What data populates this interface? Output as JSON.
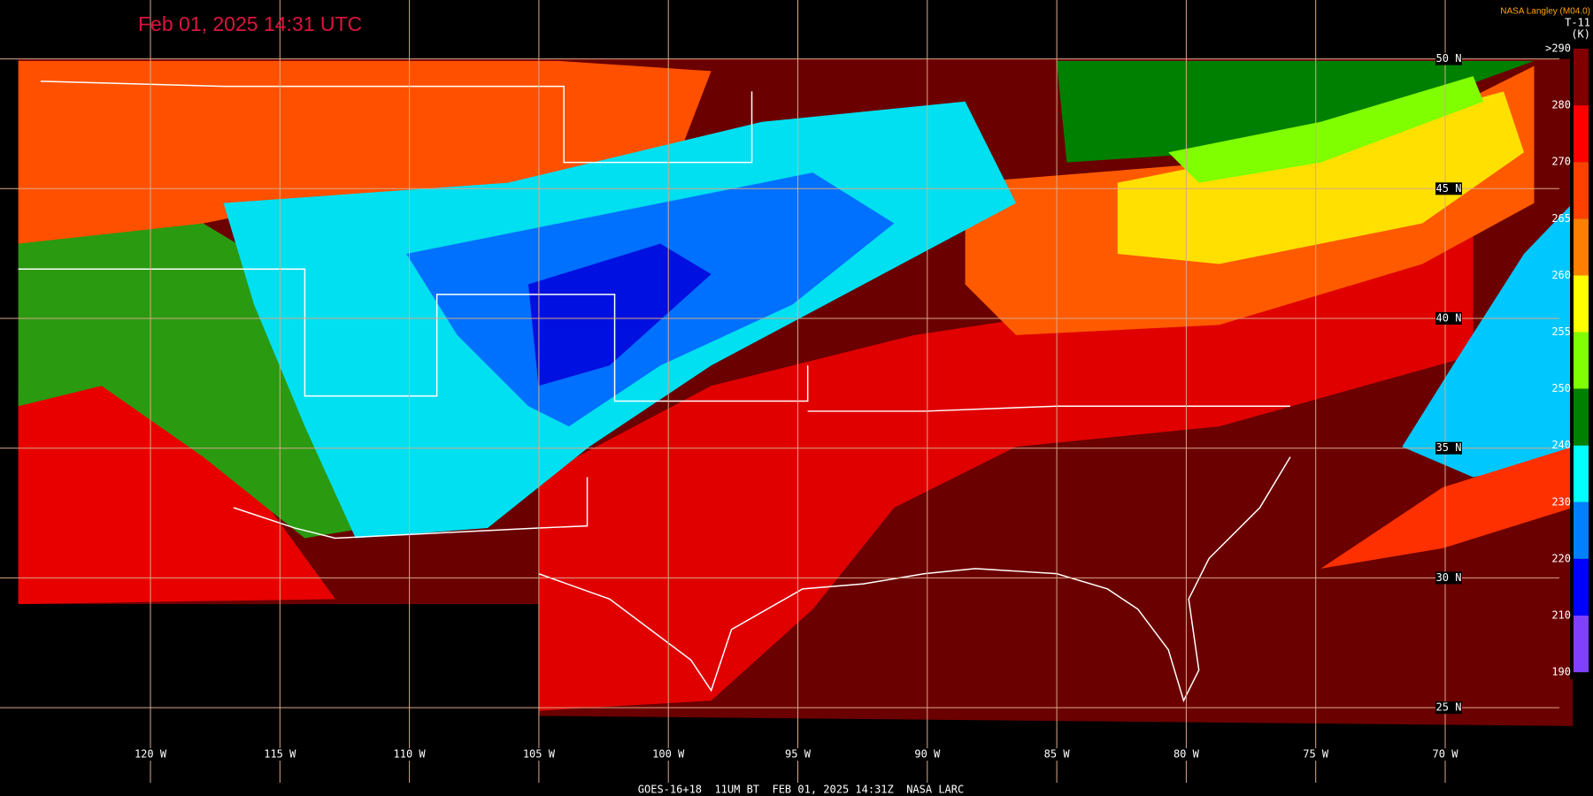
{
  "header": {
    "title": "Feb 01, 2025 14:31 UTC",
    "source": "NASA Langley (M04.0)",
    "product": "T-11",
    "unit": "(K)"
  },
  "colorbar": {
    "labels": [
      ">290",
      "280",
      "270",
      "265",
      "260",
      "255",
      "250",
      "240",
      "230",
      "220",
      "210",
      "190"
    ]
  },
  "grid": {
    "latitudes": [
      "50 N",
      "45 N",
      "40 N",
      "35 N",
      "30 N",
      "25 N"
    ],
    "longitudes": [
      "120 W",
      "115 W",
      "110 W",
      "105 W",
      "100 W",
      "95 W",
      "90 W",
      "85 W",
      "80 W",
      "75 W",
      "70 W"
    ]
  },
  "footer": "GOES-16+18  11UM BT  FEB 01, 2025 14:31Z  NASA LARC"
}
